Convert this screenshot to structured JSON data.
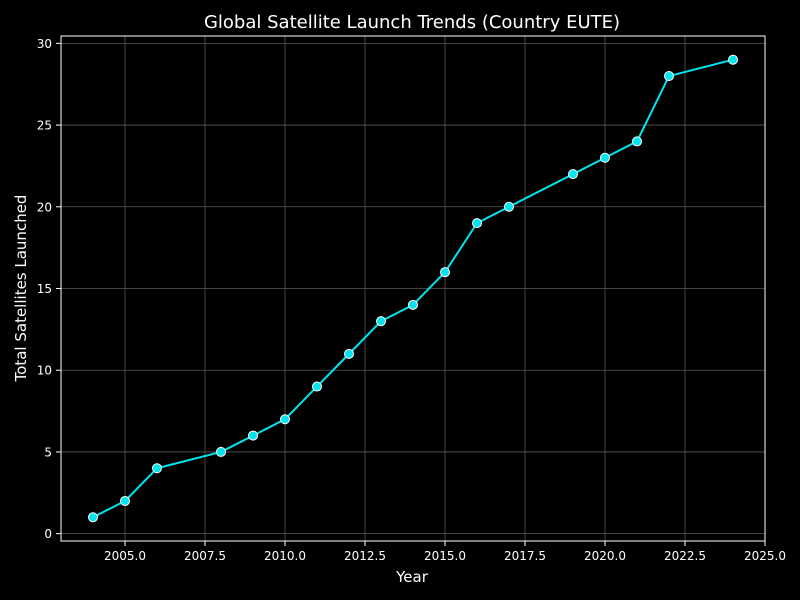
{
  "colors": {
    "background": "#000000",
    "foreground": "#ffffff",
    "grid": "#5a5a5a",
    "line": "#00e5ee",
    "marker_edge": "#ffffff"
  },
  "chart_data": {
    "type": "line",
    "title": "Global Satellite Launch Trends (Country EUTE)",
    "xlabel": "Year",
    "ylabel": "Total Satellites Launched",
    "xlim": [
      2003.0,
      2025.0
    ],
    "ylim": [
      -0.45,
      30.45
    ],
    "xticks": [
      2005.0,
      2007.5,
      2010.0,
      2012.5,
      2015.0,
      2017.5,
      2020.0,
      2022.5,
      2025.0
    ],
    "xtick_labels": [
      "2005.0",
      "2007.5",
      "2010.0",
      "2012.5",
      "2015.0",
      "2017.5",
      "2020.0",
      "2022.5",
      "2025.0"
    ],
    "yticks": [
      0,
      5,
      10,
      15,
      20,
      25,
      30
    ],
    "ytick_labels": [
      "0",
      "5",
      "10",
      "15",
      "20",
      "25",
      "30"
    ],
    "grid": true,
    "marker": "circle",
    "series": [
      {
        "x": [
          2004,
          2005,
          2006,
          2008,
          2009,
          2010,
          2011,
          2012,
          2013,
          2014,
          2015,
          2016,
          2017,
          2019,
          2020,
          2021,
          2022,
          2024
        ],
        "y": [
          1,
          2,
          4,
          5,
          6,
          7,
          9,
          11,
          13,
          14,
          16,
          19,
          20,
          22,
          23,
          24,
          28,
          29
        ]
      }
    ]
  }
}
